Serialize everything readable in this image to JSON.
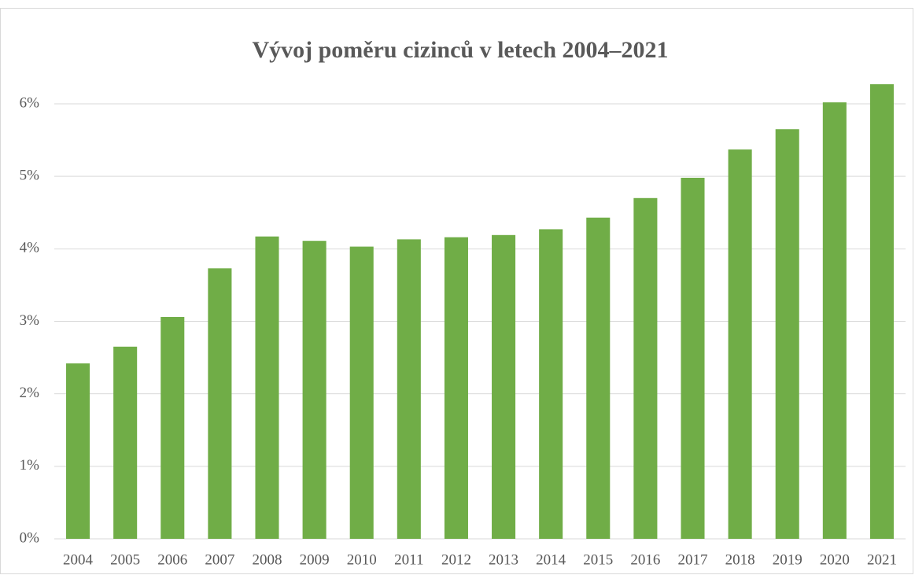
{
  "chart_data": {
    "type": "bar",
    "title": "Vývoj poměru cizinců v letech 2004–2021",
    "categories": [
      "2004",
      "2005",
      "2006",
      "2007",
      "2008",
      "2009",
      "2010",
      "2011",
      "2012",
      "2013",
      "2014",
      "2015",
      "2016",
      "2017",
      "2018",
      "2019",
      "2020",
      "2021"
    ],
    "values": [
      2.42,
      2.65,
      3.06,
      3.73,
      4.17,
      4.11,
      4.03,
      4.13,
      4.16,
      4.19,
      4.27,
      4.43,
      4.7,
      4.98,
      5.37,
      5.65,
      6.02,
      6.27
    ],
    "color": "#70ad47",
    "ylim": [
      0,
      6.5
    ],
    "yticks": [
      {
        "value": 0,
        "label": "0%"
      },
      {
        "value": 1,
        "label": "1%"
      },
      {
        "value": 2,
        "label": "2%"
      },
      {
        "value": 3,
        "label": "3%"
      },
      {
        "value": 4,
        "label": "4%"
      },
      {
        "value": 5,
        "label": "5%"
      },
      {
        "value": 6,
        "label": "6%"
      }
    ],
    "grid": true
  }
}
